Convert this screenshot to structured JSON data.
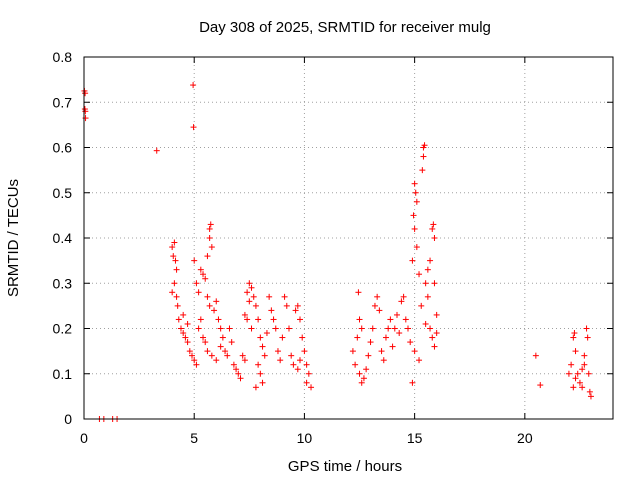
{
  "chart_data": {
    "type": "scatter",
    "title": "Day 308 of 2025, SRMTID for receiver mulg",
    "xlabel": "GPS time / hours",
    "ylabel": "SRMTID / TECUs",
    "xlim": [
      0,
      24
    ],
    "ylim": [
      0,
      0.8
    ],
    "xticks": [
      0,
      5,
      10,
      15,
      20
    ],
    "xtick_labels": [
      "0",
      "5",
      "10",
      "15",
      "20"
    ],
    "yticks": [
      0,
      0.1,
      0.2,
      0.3,
      0.4,
      0.5,
      0.6,
      0.7,
      0.8
    ],
    "ytick_labels": [
      "0",
      "0.1",
      "0.2",
      "0.3",
      "0.4",
      "0.5",
      "0.6",
      "0.7",
      "0.8"
    ],
    "grid": true,
    "marker": "+",
    "color": "#ff0000",
    "series": [
      {
        "name": "SRMTID",
        "points": [
          [
            0.02,
            0.725
          ],
          [
            0.05,
            0.72
          ],
          [
            0.04,
            0.685
          ],
          [
            0.06,
            0.68
          ],
          [
            0.07,
            0.665
          ],
          [
            3.3,
            0.593
          ],
          [
            4.95,
            0.738
          ],
          [
            4.97,
            0.645
          ],
          [
            0.7,
            0
          ],
          [
            0.9,
            0
          ],
          [
            1.3,
            0
          ],
          [
            1.5,
            0
          ],
          [
            20.5,
            0.14
          ],
          [
            20.7,
            0.075
          ],
          [
            4.0,
            0.38
          ],
          [
            4.05,
            0.36
          ],
          [
            4.1,
            0.39
          ],
          [
            4.15,
            0.35
          ],
          [
            4.2,
            0.33
          ],
          [
            4.1,
            0.3
          ],
          [
            4.0,
            0.28
          ],
          [
            4.2,
            0.27
          ],
          [
            4.25,
            0.25
          ],
          [
            4.3,
            0.22
          ],
          [
            4.4,
            0.2
          ],
          [
            4.5,
            0.19
          ],
          [
            4.6,
            0.18
          ],
          [
            4.7,
            0.17
          ],
          [
            4.8,
            0.15
          ],
          [
            4.9,
            0.14
          ],
          [
            5.0,
            0.13
          ],
          [
            5.1,
            0.12
          ],
          [
            4.5,
            0.23
          ],
          [
            4.7,
            0.21
          ],
          [
            5.2,
            0.2
          ],
          [
            5.3,
            0.22
          ],
          [
            5.4,
            0.18
          ],
          [
            5.0,
            0.35
          ],
          [
            5.1,
            0.3
          ],
          [
            5.2,
            0.28
          ],
          [
            5.3,
            0.33
          ],
          [
            5.4,
            0.32
          ],
          [
            5.5,
            0.31
          ],
          [
            5.6,
            0.36
          ],
          [
            5.7,
            0.42
          ],
          [
            5.75,
            0.43
          ],
          [
            5.7,
            0.4
          ],
          [
            5.8,
            0.38
          ],
          [
            5.6,
            0.27
          ],
          [
            5.7,
            0.25
          ],
          [
            5.9,
            0.24
          ],
          [
            6.0,
            0.26
          ],
          [
            6.1,
            0.22
          ],
          [
            6.2,
            0.2
          ],
          [
            5.5,
            0.17
          ],
          [
            5.6,
            0.15
          ],
          [
            5.8,
            0.14
          ],
          [
            6.0,
            0.13
          ],
          [
            6.2,
            0.16
          ],
          [
            6.3,
            0.18
          ],
          [
            6.4,
            0.15
          ],
          [
            6.5,
            0.14
          ],
          [
            6.6,
            0.2
          ],
          [
            6.7,
            0.17
          ],
          [
            6.8,
            0.12
          ],
          [
            6.9,
            0.11
          ],
          [
            7.0,
            0.1
          ],
          [
            7.1,
            0.09
          ],
          [
            7.2,
            0.14
          ],
          [
            7.3,
            0.13
          ],
          [
            7.4,
            0.28
          ],
          [
            7.5,
            0.3
          ],
          [
            7.6,
            0.29
          ],
          [
            7.5,
            0.26
          ],
          [
            7.7,
            0.27
          ],
          [
            7.3,
            0.23
          ],
          [
            7.4,
            0.22
          ],
          [
            7.6,
            0.2
          ],
          [
            7.8,
            0.25
          ],
          [
            7.9,
            0.22
          ],
          [
            8.0,
            0.18
          ],
          [
            8.1,
            0.16
          ],
          [
            7.9,
            0.12
          ],
          [
            8.0,
            0.1
          ],
          [
            8.1,
            0.08
          ],
          [
            7.8,
            0.07
          ],
          [
            8.2,
            0.14
          ],
          [
            8.3,
            0.19
          ],
          [
            8.4,
            0.27
          ],
          [
            8.5,
            0.24
          ],
          [
            8.6,
            0.22
          ],
          [
            8.7,
            0.2
          ],
          [
            8.8,
            0.15
          ],
          [
            8.9,
            0.13
          ],
          [
            9.0,
            0.18
          ],
          [
            9.1,
            0.27
          ],
          [
            9.2,
            0.25
          ],
          [
            9.3,
            0.2
          ],
          [
            9.4,
            0.14
          ],
          [
            9.5,
            0.12
          ],
          [
            9.6,
            0.24
          ],
          [
            9.7,
            0.25
          ],
          [
            9.8,
            0.22
          ],
          [
            9.9,
            0.18
          ],
          [
            10.0,
            0.15
          ],
          [
            9.7,
            0.11
          ],
          [
            9.8,
            0.13
          ],
          [
            10.1,
            0.12
          ],
          [
            10.2,
            0.1
          ],
          [
            10.3,
            0.07
          ],
          [
            10.1,
            0.08
          ],
          [
            12.2,
            0.15
          ],
          [
            12.3,
            0.12
          ],
          [
            12.4,
            0.18
          ],
          [
            12.45,
            0.28
          ],
          [
            12.5,
            0.22
          ],
          [
            12.6,
            0.2
          ],
          [
            12.5,
            0.1
          ],
          [
            12.6,
            0.08
          ],
          [
            12.7,
            0.09
          ],
          [
            12.8,
            0.11
          ],
          [
            12.9,
            0.14
          ],
          [
            13.0,
            0.17
          ],
          [
            13.1,
            0.2
          ],
          [
            13.2,
            0.25
          ],
          [
            13.3,
            0.27
          ],
          [
            13.4,
            0.24
          ],
          [
            13.5,
            0.15
          ],
          [
            13.6,
            0.13
          ],
          [
            13.7,
            0.18
          ],
          [
            13.8,
            0.2
          ],
          [
            13.9,
            0.22
          ],
          [
            14.0,
            0.16
          ],
          [
            14.1,
            0.2
          ],
          [
            14.2,
            0.23
          ],
          [
            14.3,
            0.19
          ],
          [
            14.4,
            0.26
          ],
          [
            14.5,
            0.27
          ],
          [
            14.6,
            0.22
          ],
          [
            14.7,
            0.2
          ],
          [
            14.8,
            0.17
          ],
          [
            14.9,
            0.35
          ],
          [
            14.95,
            0.45
          ],
          [
            15.0,
            0.52
          ],
          [
            15.05,
            0.5
          ],
          [
            15.1,
            0.48
          ],
          [
            15.0,
            0.42
          ],
          [
            15.1,
            0.38
          ],
          [
            15.2,
            0.32
          ],
          [
            15.3,
            0.25
          ],
          [
            14.9,
            0.08
          ],
          [
            15.0,
            0.15
          ],
          [
            15.2,
            0.13
          ],
          [
            15.35,
            0.55
          ],
          [
            15.4,
            0.6
          ],
          [
            15.45,
            0.605
          ],
          [
            15.4,
            0.58
          ],
          [
            15.5,
            0.3
          ],
          [
            15.6,
            0.27
          ],
          [
            15.7,
            0.2
          ],
          [
            15.8,
            0.42
          ],
          [
            15.85,
            0.43
          ],
          [
            15.9,
            0.4
          ],
          [
            15.8,
            0.18
          ],
          [
            15.9,
            0.16
          ],
          [
            16.0,
            0.19
          ],
          [
            16.0,
            0.23
          ],
          [
            15.9,
            0.3
          ],
          [
            15.7,
            0.35
          ],
          [
            15.6,
            0.33
          ],
          [
            15.5,
            0.21
          ],
          [
            22.0,
            0.1
          ],
          [
            22.1,
            0.12
          ],
          [
            22.2,
            0.18
          ],
          [
            22.25,
            0.19
          ],
          [
            22.3,
            0.15
          ],
          [
            22.4,
            0.1
          ],
          [
            22.5,
            0.08
          ],
          [
            22.6,
            0.11
          ],
          [
            22.7,
            0.12
          ],
          [
            22.8,
            0.2
          ],
          [
            22.85,
            0.18
          ],
          [
            22.9,
            0.1
          ],
          [
            22.95,
            0.06
          ],
          [
            23.0,
            0.05
          ],
          [
            22.2,
            0.07
          ],
          [
            22.3,
            0.09
          ],
          [
            22.6,
            0.07
          ],
          [
            22.7,
            0.14
          ]
        ]
      }
    ]
  }
}
